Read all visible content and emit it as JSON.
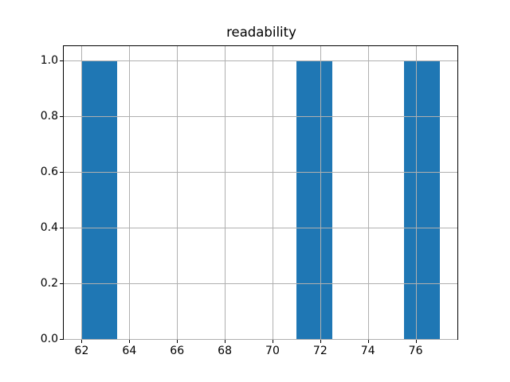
{
  "figure": {
    "background_color": "#ffffff"
  },
  "chart_data": {
    "type": "bar",
    "title": "readability",
    "xlabel": "",
    "ylabel": "",
    "bin_edges": [
      62.0,
      63.5,
      65.0,
      66.5,
      68.0,
      69.5,
      71.0,
      72.5,
      74.0,
      75.5,
      77.0
    ],
    "counts": [
      1,
      0,
      0,
      0,
      0,
      0,
      1,
      0,
      0,
      1
    ],
    "bars": [
      {
        "x0": 62.0,
        "x1": 63.5,
        "height": 1.0
      },
      {
        "x0": 71.0,
        "x1": 72.5,
        "height": 1.0
      },
      {
        "x0": 75.5,
        "x1": 77.0,
        "height": 1.0
      }
    ],
    "xlim": [
      61.25,
      77.75
    ],
    "ylim": [
      0,
      1.05
    ],
    "xtick_values": [
      62,
      64,
      66,
      68,
      70,
      72,
      74,
      76
    ],
    "xtick_labels": [
      "62",
      "64",
      "66",
      "68",
      "70",
      "72",
      "74",
      "76"
    ],
    "ytick_values": [
      0.0,
      0.2,
      0.4,
      0.6,
      0.8,
      1.0
    ],
    "ytick_labels": [
      "0.0",
      "0.2",
      "0.4",
      "0.6",
      "0.8",
      "1.0"
    ],
    "grid": true,
    "grid_above_bars": true,
    "legend": null,
    "bar_color": "#1f77b4",
    "grid_color": "#b0b0b0",
    "spine_color": "#000000",
    "text_color": "#000000"
  }
}
